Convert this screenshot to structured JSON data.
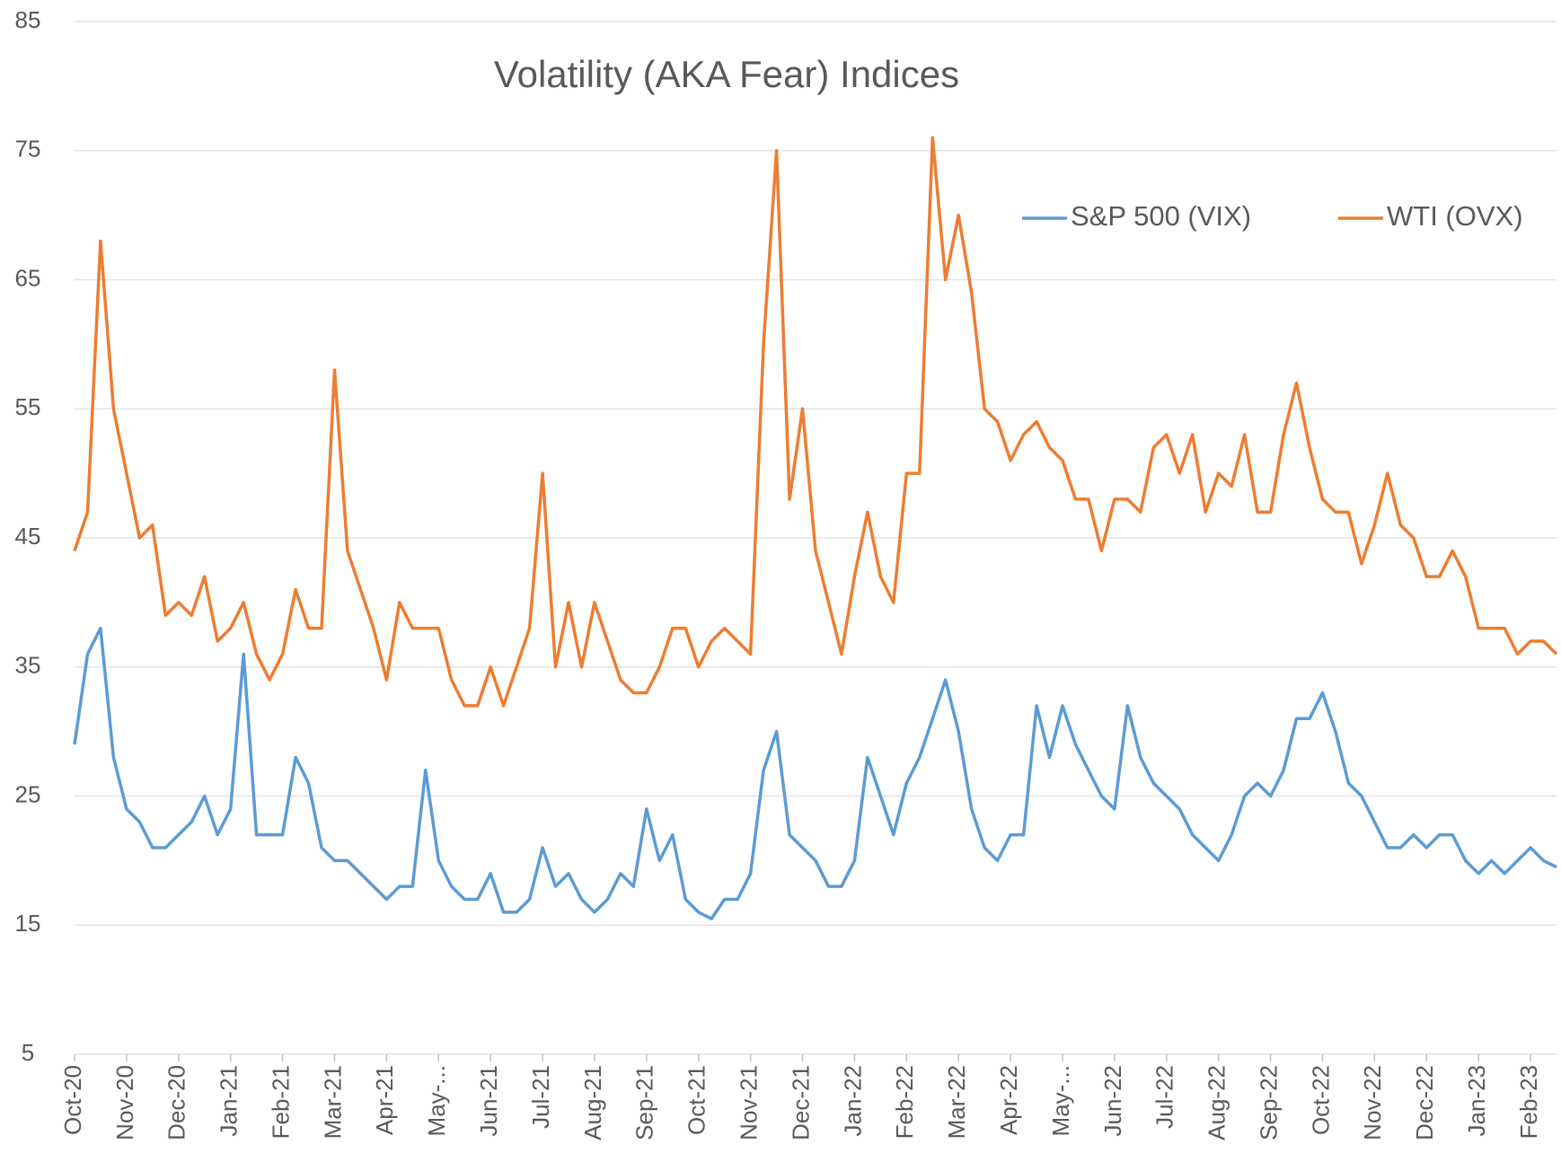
{
  "chart_data": {
    "type": "line",
    "title": "Volatility (AKA Fear) Indices",
    "x": [
      0,
      0.25,
      0.5,
      0.75,
      1,
      1.25,
      1.5,
      1.75,
      2,
      2.25,
      2.5,
      2.75,
      3,
      3.25,
      3.5,
      3.75,
      4,
      4.25,
      4.5,
      4.75,
      5,
      5.25,
      5.5,
      5.75,
      6,
      6.25,
      6.5,
      6.75,
      7,
      7.25,
      7.5,
      7.75,
      8,
      8.25,
      8.5,
      8.75,
      9,
      9.25,
      9.5,
      9.75,
      10,
      10.25,
      10.5,
      10.75,
      11,
      11.25,
      11.5,
      11.75,
      12,
      12.25,
      12.5,
      12.75,
      13,
      13.25,
      13.5,
      13.75,
      14,
      14.25,
      14.5,
      14.75,
      15,
      15.25,
      15.5,
      15.75,
      16,
      16.25,
      16.5,
      16.75,
      17,
      17.25,
      17.5,
      17.75,
      18,
      18.25,
      18.5,
      18.75,
      19,
      19.25,
      19.5,
      19.75,
      20,
      20.25,
      20.5,
      20.75,
      21,
      21.25,
      21.5,
      21.75,
      22,
      22.25,
      22.5,
      22.75,
      23,
      23.25,
      23.5,
      23.75,
      24,
      24.25,
      24.5,
      24.75,
      25,
      25.25,
      25.5,
      25.75,
      26,
      26.25,
      26.5,
      26.75,
      27,
      27.25,
      27.5,
      27.75,
      28,
      28.25,
      28.5
    ],
    "series": [
      {
        "name": "S&P 500 (VIX)",
        "color": "#5b9bd5",
        "values": [
          29,
          36,
          38,
          28,
          24,
          23,
          21,
          21,
          22,
          23,
          25,
          22,
          24,
          36,
          22,
          22,
          22,
          28,
          26,
          21,
          20,
          20,
          19,
          18,
          17,
          18,
          18,
          27,
          20,
          18,
          17,
          17,
          19,
          16,
          16,
          17,
          21,
          18,
          19,
          17,
          16,
          17,
          19,
          18,
          24,
          20,
          22,
          17,
          16,
          15.5,
          17,
          17,
          19,
          27,
          30,
          22,
          21,
          20,
          18,
          18,
          20,
          28,
          25,
          22,
          26,
          28,
          31,
          34,
          30,
          24,
          21,
          20,
          22,
          22,
          32,
          28,
          32,
          29,
          27,
          25,
          24,
          32,
          28,
          26,
          25,
          24,
          22,
          21,
          20,
          22,
          25,
          26,
          25,
          27,
          31,
          31,
          33,
          30,
          26,
          25,
          23,
          21,
          21,
          22,
          21,
          22,
          22,
          20,
          19,
          20,
          19,
          20,
          21,
          20,
          19.5
        ]
      },
      {
        "name": "WTI (OVX)",
        "color": "#ed7d31",
        "values": [
          44,
          47,
          68,
          55,
          50,
          45,
          46,
          39,
          40,
          39,
          42,
          37,
          38,
          40,
          36,
          34,
          36,
          41,
          38,
          38,
          58,
          44,
          41,
          38,
          34,
          40,
          38,
          38,
          38,
          34,
          32,
          32,
          35,
          32,
          35,
          38,
          50,
          35,
          40,
          35,
          40,
          37,
          34,
          33,
          33,
          35,
          38,
          38,
          35,
          37,
          38,
          37,
          36,
          60,
          75,
          48,
          55,
          44,
          40,
          36,
          42,
          47,
          42,
          40,
          50,
          50,
          76,
          65,
          70,
          64,
          55,
          54,
          51,
          53,
          54,
          52,
          51,
          48,
          48,
          44,
          48,
          48,
          47,
          52,
          53,
          50,
          53,
          47,
          50,
          49,
          53,
          47,
          47,
          53,
          57,
          52,
          48,
          47,
          47,
          43,
          46,
          50,
          46,
          45,
          42,
          42,
          44,
          42,
          38,
          38,
          38,
          36,
          37,
          37,
          36
        ]
      }
    ],
    "xlim": [
      0,
      28.5
    ],
    "xticks": [
      {
        "value": 0,
        "label": "Oct-20"
      },
      {
        "value": 1,
        "label": "Nov-20"
      },
      {
        "value": 2,
        "label": "Dec-20"
      },
      {
        "value": 3,
        "label": "Jan-21"
      },
      {
        "value": 4,
        "label": "Feb-21"
      },
      {
        "value": 5,
        "label": "Mar-21"
      },
      {
        "value": 6,
        "label": "Apr-21"
      },
      {
        "value": 7,
        "label": "May-..."
      },
      {
        "value": 8,
        "label": "Jun-21"
      },
      {
        "value": 9,
        "label": "Jul-21"
      },
      {
        "value": 10,
        "label": "Aug-21"
      },
      {
        "value": 11,
        "label": "Sep-21"
      },
      {
        "value": 12,
        "label": "Oct-21"
      },
      {
        "value": 13,
        "label": "Nov-21"
      },
      {
        "value": 14,
        "label": "Dec-21"
      },
      {
        "value": 15,
        "label": "Jan-22"
      },
      {
        "value": 16,
        "label": "Feb-22"
      },
      {
        "value": 17,
        "label": "Mar-22"
      },
      {
        "value": 18,
        "label": "Apr-22"
      },
      {
        "value": 19,
        "label": "May-..."
      },
      {
        "value": 20,
        "label": "Jun-22"
      },
      {
        "value": 21,
        "label": "Jul-22"
      },
      {
        "value": 22,
        "label": "Aug-22"
      },
      {
        "value": 23,
        "label": "Sep-22"
      },
      {
        "value": 24,
        "label": "Oct-22"
      },
      {
        "value": 25,
        "label": "Nov-22"
      },
      {
        "value": 26,
        "label": "Dec-22"
      },
      {
        "value": 27,
        "label": "Jan-23"
      },
      {
        "value": 28,
        "label": "Feb-23"
      }
    ],
    "ylim": [
      5,
      85
    ],
    "yticks": [
      5,
      15,
      25,
      35,
      45,
      55,
      65,
      75,
      85
    ],
    "grid": true,
    "legend": "top-right"
  }
}
